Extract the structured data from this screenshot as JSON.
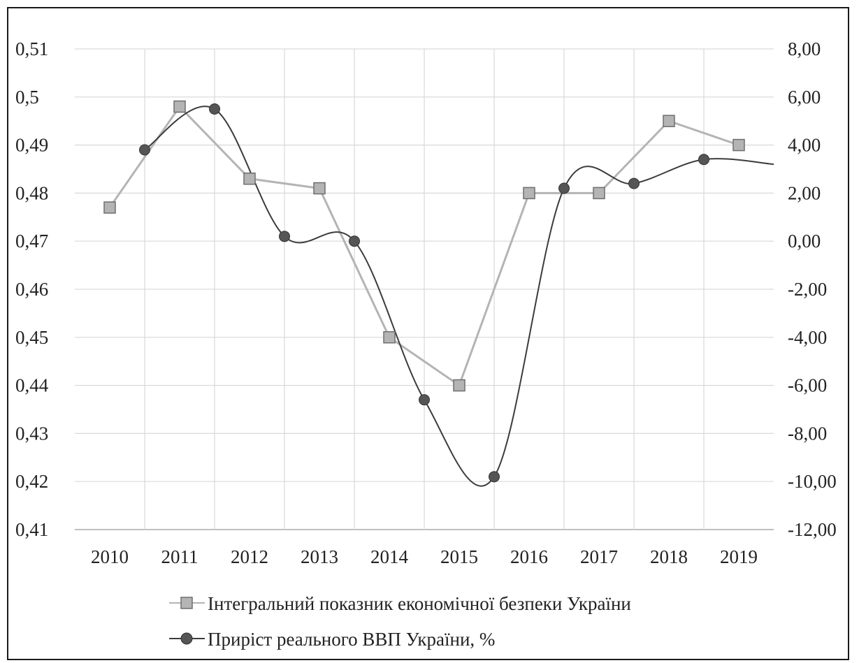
{
  "chart_data": {
    "type": "line",
    "categories": [
      "2010",
      "2011",
      "2012",
      "2013",
      "2014",
      "2015",
      "2016",
      "2017",
      "2018",
      "2019"
    ],
    "y_left": {
      "min": 0.41,
      "max": 0.51,
      "step": 0.01,
      "tick_labels": [
        "0,41",
        "0,42",
        "0,43",
        "0,44",
        "0,45",
        "0,46",
        "0,47",
        "0,48",
        "0,49",
        "0,5",
        "0,51"
      ]
    },
    "y_right": {
      "min": -12,
      "max": 8,
      "step": 2,
      "tick_labels": [
        "-12,00",
        "-10,00",
        "-8,00",
        "-6,00",
        "-4,00",
        "-2,00",
        "0,00",
        "2,00",
        "4,00",
        "6,00",
        "8,00"
      ]
    },
    "grid": true,
    "legend_position": "bottom",
    "series": [
      {
        "name": "Інтегральний показник економічної безпеки України",
        "axis": "left",
        "marker": "square",
        "color": "#b4b4b4",
        "values": [
          0.477,
          0.498,
          0.483,
          0.481,
          0.45,
          0.44,
          0.48,
          0.48,
          0.495,
          0.49
        ]
      },
      {
        "name": "Приріст реального ВВП України, %",
        "axis": "right",
        "marker": "circle",
        "color": "#3c3c3c",
        "values": [
          3.8,
          5.5,
          0.2,
          0.0,
          -6.6,
          -9.8,
          2.2,
          2.4,
          3.4,
          3.2
        ]
      }
    ]
  }
}
